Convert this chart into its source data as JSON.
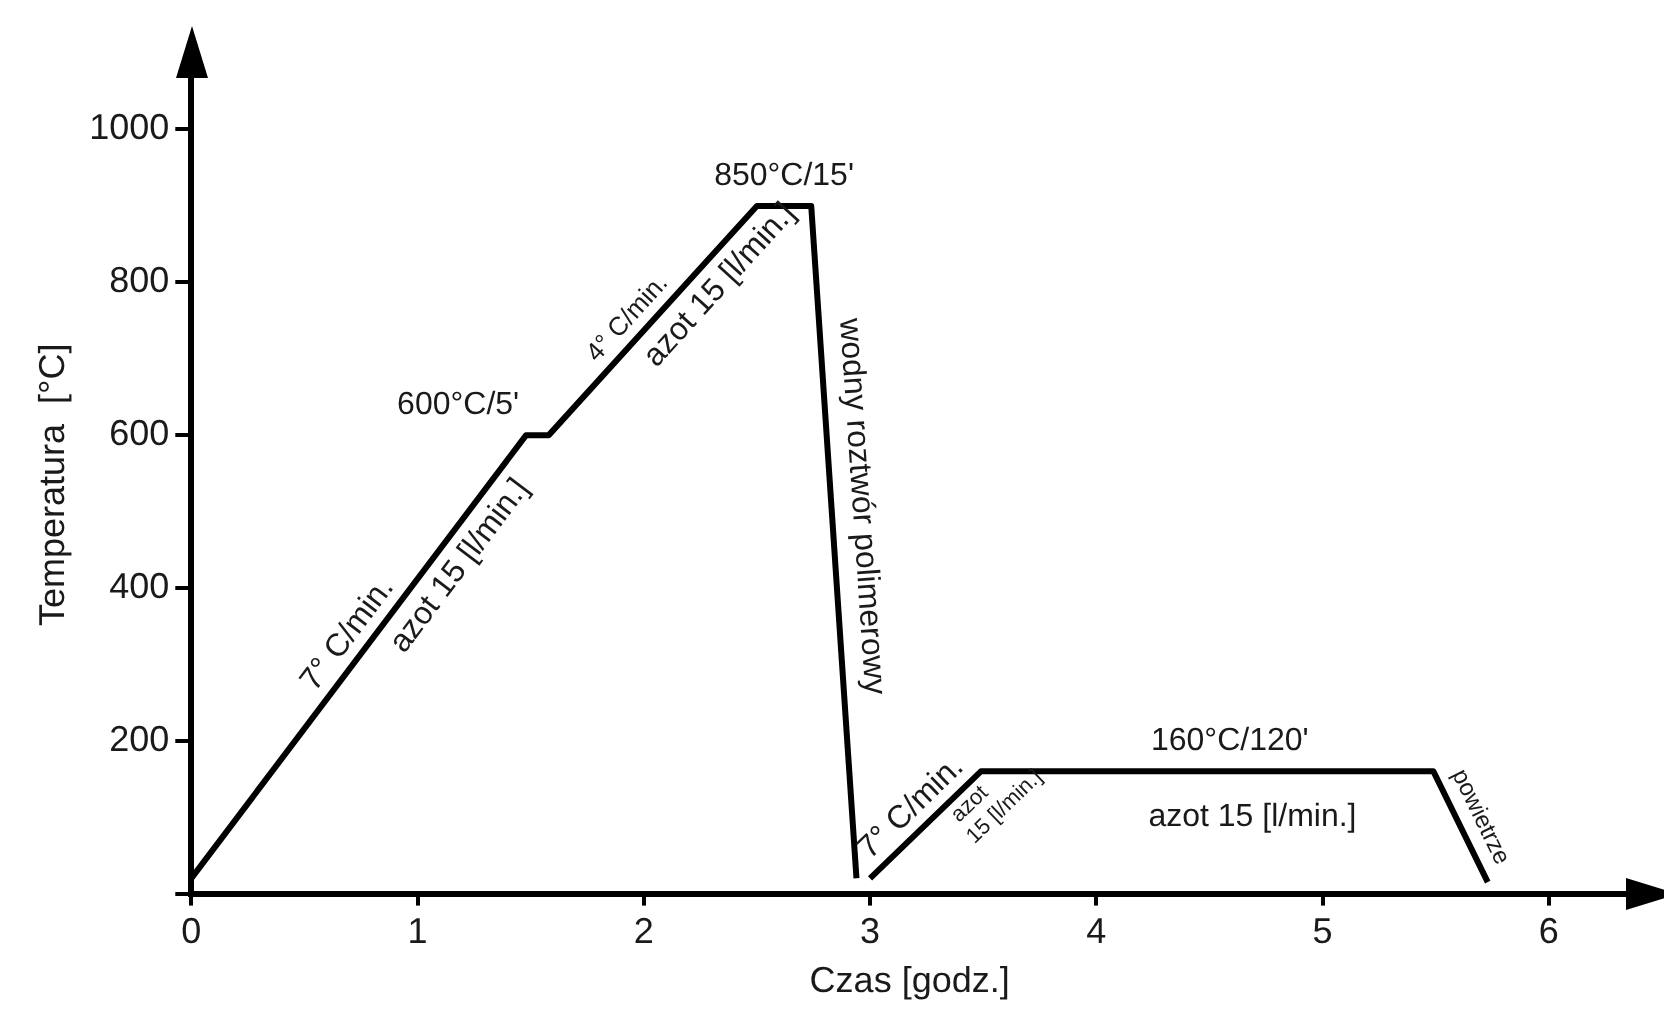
{
  "chart_data": {
    "type": "line",
    "xlabel": "Czas [godz.]",
    "ylabel": "Temperatura  [°C]",
    "series": [
      {
        "color": "#000000",
        "x": [
          0,
          1.48,
          1.58,
          2.5,
          2.74,
          2.94
        ],
        "values": [
          20,
          600,
          600,
          900,
          900,
          20
        ]
      },
      {
        "color": "#000000",
        "x": [
          3,
          3.49,
          5.49,
          5.73
        ],
        "values": [
          20,
          160,
          160,
          15
        ]
      }
    ],
    "xlim": [
      0,
      6.35
    ],
    "ylim": [
      0,
      1070
    ],
    "xticks": [
      0,
      1,
      2,
      3,
      4,
      5,
      6
    ],
    "yticks": [
      {
        "value": 0,
        "label": null
      },
      200,
      400,
      600,
      800,
      1000
    ],
    "grid": false,
    "legend": false,
    "marker": "none",
    "line_style": "solid",
    "annotations": [
      "7° C/min.",
      "azot 15 [l/min.]",
      "600°C/5'",
      "4° C/min.",
      "azot 15 [l/min.]",
      "850°C/15'",
      "wodny roztwór polimerowy",
      "7° C/min.",
      "azot",
      "15 [l/min.]",
      "160°C/120'",
      "azot 15 [l/min.]",
      "powietrze"
    ]
  }
}
